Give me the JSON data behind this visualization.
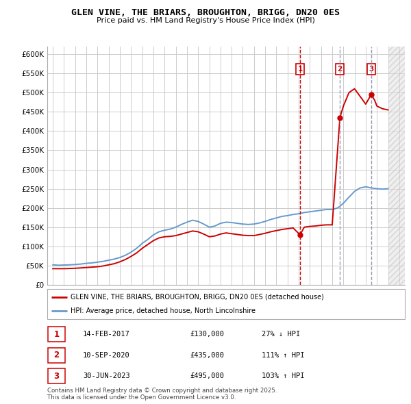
{
  "title": "GLEN VINE, THE BRIARS, BROUGHTON, BRIGG, DN20 0ES",
  "subtitle": "Price paid vs. HM Land Registry's House Price Index (HPI)",
  "ylim": [
    0,
    620000
  ],
  "yticks": [
    0,
    50000,
    100000,
    150000,
    200000,
    250000,
    300000,
    350000,
    400000,
    450000,
    500000,
    550000,
    600000
  ],
  "ytick_labels": [
    "£0",
    "£50K",
    "£100K",
    "£150K",
    "£200K",
    "£250K",
    "£300K",
    "£350K",
    "£400K",
    "£450K",
    "£500K",
    "£550K",
    "£600K"
  ],
  "xlim_start": 1994.5,
  "xlim_end": 2026.5,
  "background_color": "#ffffff",
  "grid_color": "#cccccc",
  "hpi_line_color": "#6699cc",
  "price_line_color": "#cc0000",
  "transactions": [
    {
      "num": 1,
      "date": "14-FEB-2017",
      "date_float": 2017.12,
      "price": 130000,
      "label": "27% ↓ HPI"
    },
    {
      "num": 2,
      "date": "10-SEP-2020",
      "date_float": 2020.69,
      "price": 435000,
      "label": "111% ↑ HPI"
    },
    {
      "num": 3,
      "date": "30-JUN-2023",
      "date_float": 2023.49,
      "price": 495000,
      "label": "103% ↑ HPI"
    }
  ],
  "hpi_data": [
    [
      1995.0,
      52000
    ],
    [
      1995.5,
      51000
    ],
    [
      1996.0,
      51500
    ],
    [
      1996.5,
      52000
    ],
    [
      1997.0,
      53000
    ],
    [
      1997.5,
      54000
    ],
    [
      1998.0,
      56000
    ],
    [
      1998.5,
      57000
    ],
    [
      1999.0,
      59000
    ],
    [
      1999.5,
      61000
    ],
    [
      2000.0,
      64000
    ],
    [
      2000.5,
      67000
    ],
    [
      2001.0,
      71000
    ],
    [
      2001.5,
      77000
    ],
    [
      2002.0,
      85000
    ],
    [
      2002.5,
      95000
    ],
    [
      2003.0,
      108000
    ],
    [
      2003.5,
      118000
    ],
    [
      2004.0,
      130000
    ],
    [
      2004.5,
      138000
    ],
    [
      2005.0,
      142000
    ],
    [
      2005.5,
      145000
    ],
    [
      2006.0,
      150000
    ],
    [
      2006.5,
      157000
    ],
    [
      2007.0,
      163000
    ],
    [
      2007.5,
      168000
    ],
    [
      2008.0,
      165000
    ],
    [
      2008.5,
      158000
    ],
    [
      2009.0,
      150000
    ],
    [
      2009.5,
      153000
    ],
    [
      2010.0,
      160000
    ],
    [
      2010.5,
      163000
    ],
    [
      2011.0,
      162000
    ],
    [
      2011.5,
      160000
    ],
    [
      2012.0,
      158000
    ],
    [
      2012.5,
      157000
    ],
    [
      2013.0,
      158000
    ],
    [
      2013.5,
      161000
    ],
    [
      2014.0,
      165000
    ],
    [
      2014.5,
      170000
    ],
    [
      2015.0,
      174000
    ],
    [
      2015.5,
      178000
    ],
    [
      2016.0,
      180000
    ],
    [
      2016.5,
      183000
    ],
    [
      2017.0,
      185000
    ],
    [
      2017.5,
      188000
    ],
    [
      2018.0,
      190000
    ],
    [
      2018.5,
      192000
    ],
    [
      2019.0,
      194000
    ],
    [
      2019.5,
      196000
    ],
    [
      2020.0,
      196000
    ],
    [
      2020.5,
      200000
    ],
    [
      2021.0,
      212000
    ],
    [
      2021.5,
      228000
    ],
    [
      2022.0,
      243000
    ],
    [
      2022.5,
      252000
    ],
    [
      2023.0,
      255000
    ],
    [
      2023.5,
      252000
    ],
    [
      2024.0,
      250000
    ],
    [
      2024.5,
      249000
    ],
    [
      2025.0,
      250000
    ]
  ],
  "price_data": [
    [
      1995.0,
      42000
    ],
    [
      1995.5,
      42000
    ],
    [
      1996.0,
      42000
    ],
    [
      1996.5,
      42500
    ],
    [
      1997.0,
      43000
    ],
    [
      1997.5,
      44000
    ],
    [
      1998.0,
      45000
    ],
    [
      1998.5,
      46000
    ],
    [
      1999.0,
      47000
    ],
    [
      1999.5,
      49000
    ],
    [
      2000.0,
      52000
    ],
    [
      2000.5,
      55000
    ],
    [
      2001.0,
      60000
    ],
    [
      2001.5,
      66000
    ],
    [
      2002.0,
      74000
    ],
    [
      2002.5,
      83000
    ],
    [
      2003.0,
      95000
    ],
    [
      2003.5,
      105000
    ],
    [
      2004.0,
      115000
    ],
    [
      2004.5,
      122000
    ],
    [
      2005.0,
      125000
    ],
    [
      2005.5,
      126000
    ],
    [
      2006.0,
      128000
    ],
    [
      2006.5,
      132000
    ],
    [
      2007.0,
      136000
    ],
    [
      2007.5,
      140000
    ],
    [
      2008.0,
      138000
    ],
    [
      2008.5,
      132000
    ],
    [
      2009.0,
      125000
    ],
    [
      2009.5,
      127000
    ],
    [
      2010.0,
      132000
    ],
    [
      2010.5,
      135000
    ],
    [
      2011.0,
      133000
    ],
    [
      2011.5,
      131000
    ],
    [
      2012.0,
      129000
    ],
    [
      2012.5,
      128000
    ],
    [
      2013.0,
      128000
    ],
    [
      2013.5,
      131000
    ],
    [
      2014.0,
      134000
    ],
    [
      2014.5,
      138000
    ],
    [
      2015.0,
      141000
    ],
    [
      2015.5,
      144000
    ],
    [
      2016.0,
      146000
    ],
    [
      2016.5,
      148000
    ],
    [
      2017.12,
      130000
    ],
    [
      2017.5,
      150000
    ],
    [
      2018.0,
      152000
    ],
    [
      2018.5,
      153000
    ],
    [
      2019.0,
      155000
    ],
    [
      2019.5,
      156000
    ],
    [
      2020.0,
      156000
    ],
    [
      2020.69,
      435000
    ],
    [
      2021.0,
      465000
    ],
    [
      2021.5,
      500000
    ],
    [
      2022.0,
      510000
    ],
    [
      2022.5,
      490000
    ],
    [
      2023.0,
      470000
    ],
    [
      2023.49,
      495000
    ],
    [
      2023.8,
      480000
    ],
    [
      2024.0,
      465000
    ],
    [
      2024.5,
      458000
    ],
    [
      2025.0,
      455000
    ]
  ],
  "hatch_start": 2025.0,
  "hatch_end": 2026.5,
  "legend_entries": [
    "GLEN VINE, THE BRIARS, BROUGHTON, BRIGG, DN20 0ES (detached house)",
    "HPI: Average price, detached house, North Lincolnshire"
  ],
  "footnote": "Contains HM Land Registry data © Crown copyright and database right 2025.\nThis data is licensed under the Open Government Licence v3.0.",
  "vline_color_1": "#cc0000",
  "vline_color_23": "#9999bb"
}
